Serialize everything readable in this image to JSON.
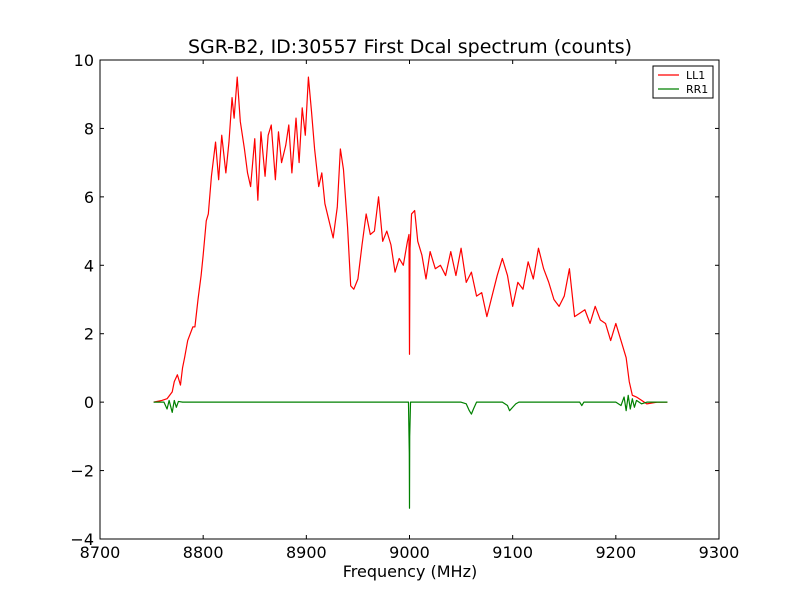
{
  "chart_data": {
    "type": "line",
    "title": "SGR-B2, ID:30557 First Dcal spectrum (counts)",
    "xlabel": "Frequency (MHz)",
    "ylabel": "",
    "xlim": [
      8700,
      9300
    ],
    "ylim": [
      -4,
      10
    ],
    "xticks": [
      8700,
      8800,
      8900,
      9000,
      9100,
      9200,
      9300
    ],
    "yticks": [
      -4,
      -2,
      0,
      2,
      4,
      6,
      8,
      10
    ],
    "grid": false,
    "legend_position": "top-right",
    "series": [
      {
        "name": "LL1",
        "color": "#ff0000",
        "x": [
          8752,
          8760,
          8765,
          8770,
          8772,
          8775,
          8778,
          8780,
          8782,
          8785,
          8790,
          8792,
          8795,
          8798,
          8800,
          8803,
          8805,
          8808,
          8812,
          8815,
          8818,
          8822,
          8825,
          8828,
          8830,
          8833,
          8836,
          8840,
          8843,
          8846,
          8850,
          8853,
          8856,
          8860,
          8863,
          8866,
          8870,
          8873,
          8876,
          8880,
          8883,
          8886,
          8890,
          8893,
          8896,
          8899,
          8902,
          8905,
          8908,
          8912,
          8915,
          8918,
          8922,
          8926,
          8930,
          8933,
          8936,
          8940,
          8943,
          8946,
          8950,
          8954,
          8958,
          8962,
          8966,
          8970,
          8974,
          8978,
          8982,
          8986,
          8990,
          8994,
          8998,
          8999.5,
          9000,
          9000.5,
          9002,
          9005,
          9008,
          9012,
          9016,
          9020,
          9025,
          9030,
          9035,
          9040,
          9045,
          9050,
          9055,
          9060,
          9065,
          9070,
          9075,
          9080,
          9085,
          9090,
          9095,
          9100,
          9105,
          9110,
          9115,
          9120,
          9125,
          9130,
          9135,
          9140,
          9145,
          9150,
          9155,
          9160,
          9165,
          9170,
          9175,
          9180,
          9185,
          9190,
          9195,
          9200,
          9205,
          9210,
          9213,
          9216,
          9220,
          9225,
          9230,
          9240,
          9250
        ],
        "y": [
          0.0,
          0.05,
          0.1,
          0.3,
          0.6,
          0.8,
          0.5,
          1.0,
          1.3,
          1.8,
          2.2,
          2.2,
          3.0,
          3.7,
          4.3,
          5.3,
          5.5,
          6.6,
          7.6,
          6.5,
          7.8,
          6.7,
          7.6,
          8.9,
          8.3,
          9.5,
          8.2,
          7.4,
          6.7,
          6.3,
          7.7,
          5.9,
          7.9,
          6.6,
          7.8,
          8.1,
          6.5,
          7.9,
          7.0,
          7.5,
          8.1,
          6.7,
          8.3,
          7.0,
          8.6,
          7.8,
          9.5,
          8.5,
          7.4,
          6.3,
          6.7,
          5.8,
          5.3,
          4.8,
          5.7,
          7.4,
          6.8,
          5.1,
          3.4,
          3.3,
          3.6,
          4.6,
          5.5,
          4.9,
          5.0,
          6.0,
          4.7,
          5.0,
          4.6,
          3.8,
          4.2,
          4.0,
          4.7,
          4.9,
          1.4,
          4.5,
          5.5,
          5.6,
          4.7,
          4.3,
          3.6,
          4.4,
          3.9,
          4.0,
          3.7,
          4.4,
          3.7,
          4.5,
          3.5,
          3.8,
          3.1,
          3.2,
          2.5,
          3.1,
          3.7,
          4.2,
          3.7,
          2.8,
          3.5,
          3.3,
          4.1,
          3.6,
          4.5,
          3.9,
          3.5,
          3.0,
          2.8,
          3.1,
          3.9,
          2.5,
          2.6,
          2.7,
          2.3,
          2.8,
          2.4,
          2.3,
          1.8,
          2.3,
          1.8,
          1.3,
          0.6,
          0.2,
          0.15,
          0.05,
          -0.05,
          0.0,
          0.0
        ]
      },
      {
        "name": "RR1",
        "color": "#008000",
        "x": [
          8752,
          8762,
          8765,
          8767,
          8770,
          8772,
          8774,
          8776,
          8780,
          8800,
          8850,
          8900,
          8950,
          8999,
          8999.8,
          9000,
          9000.2,
          9001,
          9050,
          9055,
          9058,
          9060,
          9062,
          9065,
          9090,
          9095,
          9097,
          9100,
          9103,
          9106,
          9150,
          9165,
          9167,
          9169,
          9200,
          9205,
          9208,
          9210,
          9212,
          9214,
          9216,
          9218,
          9220,
          9225,
          9230,
          9240,
          9250
        ],
        "y": [
          0.0,
          0.0,
          -0.2,
          0.05,
          -0.3,
          0.05,
          -0.15,
          0.02,
          0.0,
          0.0,
          0.0,
          0.0,
          0.0,
          0.0,
          -1.5,
          -3.1,
          -1.0,
          0.0,
          0.0,
          -0.05,
          -0.25,
          -0.35,
          -0.2,
          0.0,
          0.0,
          -0.1,
          -0.25,
          -0.15,
          -0.05,
          0.0,
          0.0,
          0.0,
          -0.1,
          0.0,
          0.0,
          -0.1,
          0.15,
          -0.25,
          0.2,
          -0.2,
          0.1,
          -0.15,
          0.05,
          -0.05,
          0.0,
          0.0,
          0.0
        ]
      }
    ]
  }
}
